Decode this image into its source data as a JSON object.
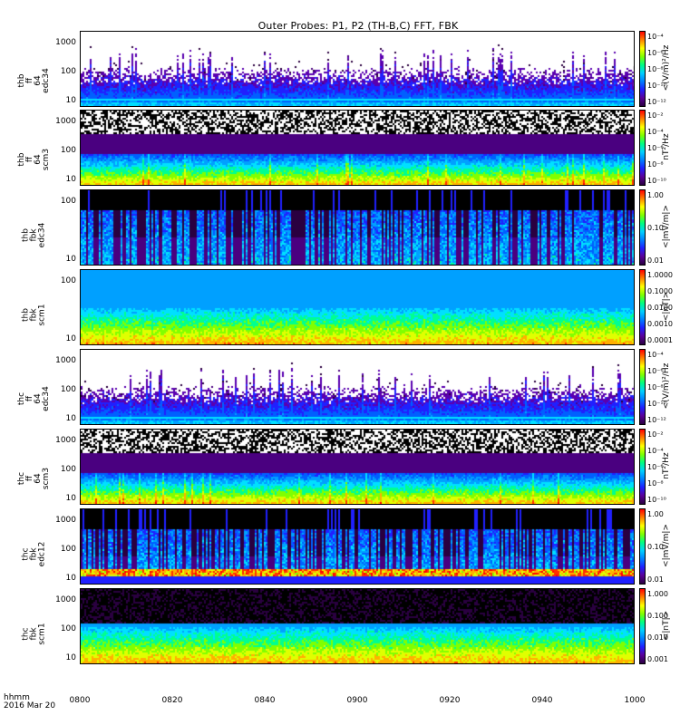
{
  "title": "Outer Probes: P1, P2 (TH-B,C) FFT, FBK",
  "footer": {
    "format": "hhmm",
    "date": "2016 Mar 20"
  },
  "x_ticks": [
    "0800",
    "0820",
    "0840",
    "0900",
    "0920",
    "0940",
    "1000"
  ],
  "colorbar_colors": [
    "#ffffff",
    "#000000",
    "#2a0040",
    "#5a009a",
    "#2020ff",
    "#0080ff",
    "#00d0ff",
    "#00ff80",
    "#80ff00",
    "#ffff00",
    "#ff8000",
    "#ff0000"
  ],
  "chart_data": [
    {
      "type": "heatmap",
      "ylabel": "thb\nff\n64\nedc34",
      "yticks": [
        "1000",
        "100",
        "10"
      ],
      "ctick_labels": [
        "10⁻⁴",
        "10⁻⁶",
        "10⁻⁸",
        "10⁻¹⁰",
        "10⁻¹²"
      ],
      "cunit": "<(V/m)²/Hz",
      "profile": "elow"
    },
    {
      "type": "heatmap",
      "ylabel": "thb\nff\n64\nscm3",
      "yticks": [
        "1000",
        "100",
        "10"
      ],
      "ctick_labels": [
        "10⁻²",
        "10⁻⁴",
        "10⁻⁶",
        "10⁻⁸",
        "10⁻¹⁰"
      ],
      "cunit": "nT²/Hz",
      "profile": "scm"
    },
    {
      "type": "heatmap",
      "ylabel": "thb\nfbk\nedc34",
      "yticks": [
        "100",
        "10"
      ],
      "ctick_labels": [
        "1.00",
        "0.10",
        "0.01"
      ],
      "cunit": "<|mV/m|>",
      "profile": "fbke"
    },
    {
      "type": "heatmap",
      "ylabel": "thb\nfbk\nscm1",
      "yticks": [
        "100",
        "10"
      ],
      "ctick_labels": [
        "1.0000",
        "0.1000",
        "0.0100",
        "0.0010",
        "0.0001"
      ],
      "cunit": "<|nT|>",
      "profile": "fbks"
    },
    {
      "type": "heatmap",
      "ylabel": "thc\nff\n64\nedc34",
      "yticks": [
        "1000",
        "100",
        "10"
      ],
      "ctick_labels": [
        "10⁻⁴",
        "10⁻⁶",
        "10⁻⁸",
        "10⁻¹⁰",
        "10⁻¹²"
      ],
      "cunit": "<(V/m)²/Hz",
      "profile": "elow"
    },
    {
      "type": "heatmap",
      "ylabel": "thc\nff\n64\nscm3",
      "yticks": [
        "1000",
        "100",
        "10"
      ],
      "ctick_labels": [
        "10⁻²",
        "10⁻⁴",
        "10⁻⁶",
        "10⁻⁸",
        "10⁻¹⁰"
      ],
      "cunit": "nT²/Hz",
      "profile": "scm"
    },
    {
      "type": "heatmap",
      "ylabel": "thc\nfbk\nedc12",
      "yticks": [
        "1000",
        "100",
        "10"
      ],
      "ctick_labels": [
        "1.00",
        "0.10",
        "0.01"
      ],
      "cunit": "<|mV/m|>",
      "profile": "fbke2"
    },
    {
      "type": "heatmap",
      "ylabel": "thc\nfbk\nscm1",
      "yticks": [
        "1000",
        "100",
        "10"
      ],
      "ctick_labels": [
        "1.000",
        "0.100",
        "0.010",
        "0.001"
      ],
      "cunit": "<|nT|>",
      "profile": "fbks2"
    }
  ]
}
